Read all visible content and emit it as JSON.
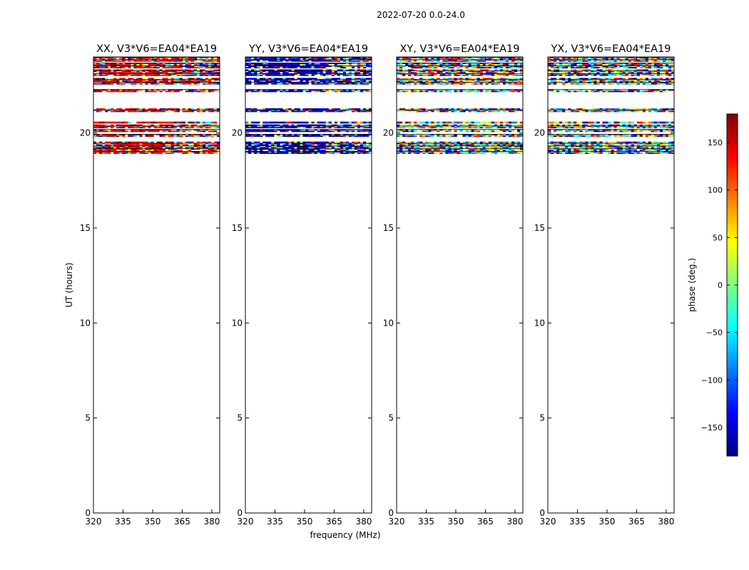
{
  "figure": {
    "suptitle": "2022-07-20 0.0-24.0",
    "ylabel": "UT (hours)",
    "xlabel": "frequency (MHz)",
    "colorbar_label": "phase (deg.)",
    "colorbar_ticks": [
      "150",
      "100",
      "50",
      "0",
      "−50",
      "−100",
      "−150"
    ],
    "colorbar_tick_values": [
      150,
      100,
      50,
      0,
      -50,
      -100,
      -150
    ],
    "colorbar_range": [
      -180,
      180
    ],
    "colormap": [
      "#00007f",
      "#0000ff",
      "#007fff",
      "#00ffff",
      "#7fff7f",
      "#ffff00",
      "#ff7f00",
      "#ff0000",
      "#7f0000"
    ]
  },
  "chart_data": [
    {
      "type": "heatmap",
      "title": "XX, V3*V6=EA04*EA19",
      "xlabel": "frequency (MHz)",
      "ylabel": "UT (hours)",
      "xlim": [
        320,
        384
      ],
      "ylim": [
        0,
        24
      ],
      "xticks": [
        320,
        335,
        350,
        365,
        380
      ],
      "yticks": [
        0,
        5,
        10,
        15,
        20
      ],
      "xtick_labels": [
        "320",
        "335",
        "350",
        "365",
        "380"
      ],
      "ytick_labels": [
        "0",
        "5",
        "10",
        "15",
        "20"
      ],
      "data_hours": [
        18.9,
        24.0
      ],
      "dominant_phase_deg": 150
    },
    {
      "type": "heatmap",
      "title": "YY, V3*V6=EA04*EA19",
      "xlabel": "frequency (MHz)",
      "ylabel": "",
      "xlim": [
        320,
        384
      ],
      "ylim": [
        0,
        24
      ],
      "xticks": [
        320,
        335,
        350,
        365,
        380
      ],
      "yticks": [
        0,
        5,
        10,
        15,
        20
      ],
      "xtick_labels": [
        "320",
        "335",
        "350",
        "365",
        "380"
      ],
      "ytick_labels": [
        "0",
        "5",
        "10",
        "15",
        "20"
      ],
      "data_hours": [
        18.9,
        24.0
      ],
      "dominant_phase_deg": -160
    },
    {
      "type": "heatmap",
      "title": "XY, V3*V6=EA04*EA19",
      "xlabel": "frequency (MHz)",
      "ylabel": "",
      "xlim": [
        320,
        384
      ],
      "ylim": [
        0,
        24
      ],
      "xticks": [
        320,
        335,
        350,
        365,
        380
      ],
      "yticks": [
        0,
        5,
        10,
        15,
        20
      ],
      "xtick_labels": [
        "320",
        "335",
        "350",
        "365",
        "380"
      ],
      "ytick_labels": [
        "0",
        "5",
        "10",
        "15",
        "20"
      ],
      "data_hours": [
        18.9,
        24.0
      ],
      "dominant_phase_deg": null
    },
    {
      "type": "heatmap",
      "title": "YX, V3*V6=EA04*EA19",
      "xlabel": "frequency (MHz)",
      "ylabel": "",
      "xlim": [
        320,
        384
      ],
      "ylim": [
        0,
        24
      ],
      "xticks": [
        320,
        335,
        350,
        365,
        380
      ],
      "yticks": [
        0,
        5,
        10,
        15,
        20
      ],
      "xtick_labels": [
        "320",
        "335",
        "350",
        "365",
        "380"
      ],
      "ytick_labels": [
        "0",
        "5",
        "10",
        "15",
        "20"
      ],
      "data_hours": [
        18.9,
        24.0
      ],
      "dominant_phase_deg": null
    }
  ]
}
